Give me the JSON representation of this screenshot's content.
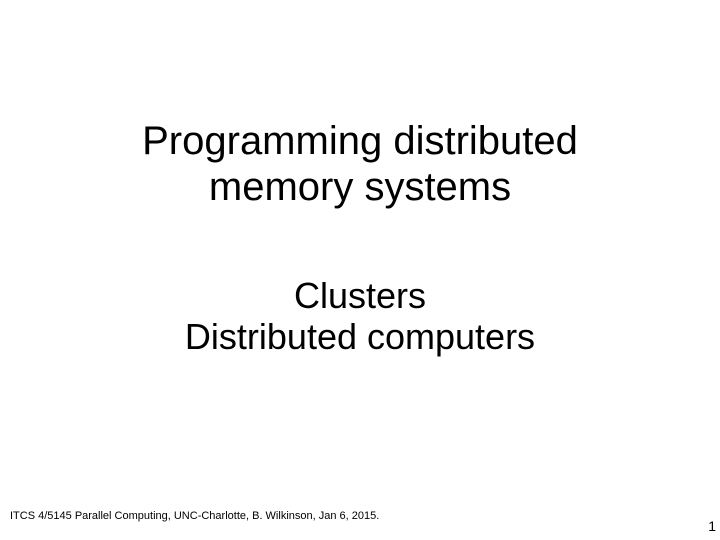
{
  "slide": {
    "title": {
      "line1": "Programming distributed",
      "line2": "memory systems"
    },
    "subtitle": {
      "line1": "Clusters",
      "line2": "Distributed computers"
    },
    "footer": "ITCS 4/5145 Parallel Computing, UNC-Charlotte, B. Wilkinson,  Jan 6, 2015.",
    "page_number": "1"
  },
  "styling": {
    "background_color": "#ffffff",
    "title_fontsize": 40,
    "subtitle_fontsize": 36,
    "footer_fontsize": 11,
    "page_number_fontsize": 14,
    "text_color": "#000000",
    "font_family": "Arial"
  }
}
